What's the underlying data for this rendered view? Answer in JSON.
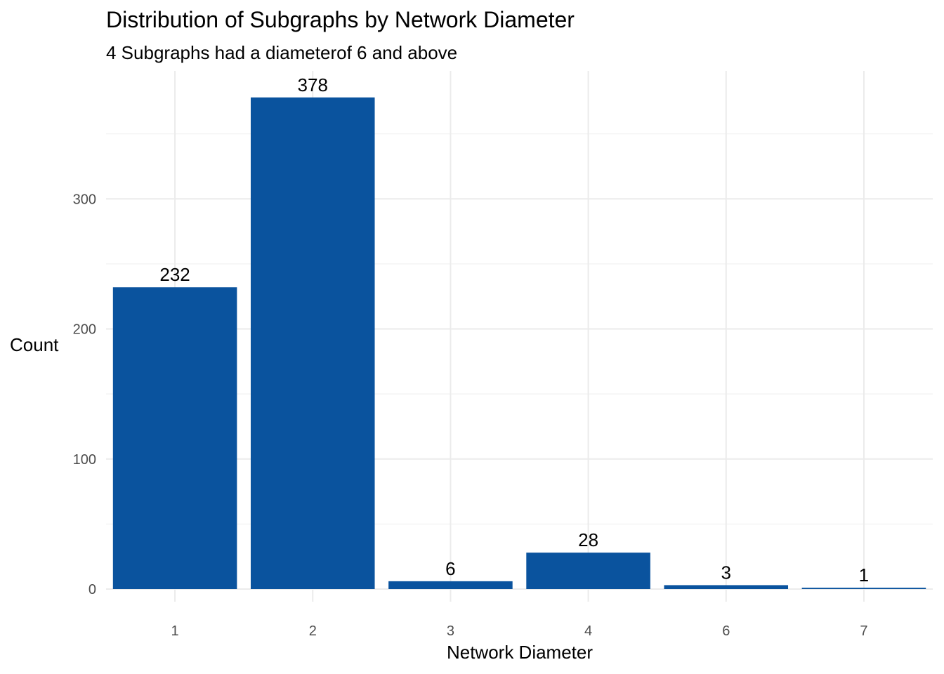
{
  "chart_data": {
    "type": "bar",
    "title": "Distribution of Subgraphs by Network Diameter",
    "subtitle": "4 Subgraphs had a diameterof 6 and above",
    "xlabel": "Network Diameter",
    "ylabel": "Count",
    "categories": [
      "1",
      "2",
      "3",
      "4",
      "6",
      "7"
    ],
    "values": [
      232,
      378,
      6,
      28,
      3,
      1
    ],
    "data_labels": [
      "232",
      "378",
      "6",
      "28",
      "3",
      "1"
    ],
    "ylim": [
      0,
      400
    ],
    "yticks": [
      0,
      100,
      200,
      300
    ],
    "ytick_labels": [
      "0",
      "100",
      "200",
      "300"
    ],
    "grid": true,
    "legend": "none",
    "bar_color": "#0A539E"
  }
}
